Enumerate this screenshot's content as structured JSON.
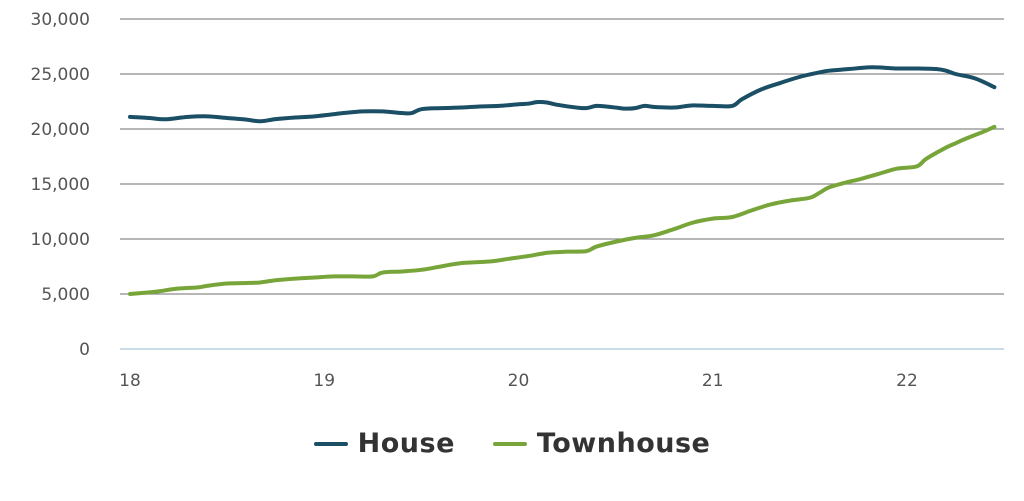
{
  "chart_data": {
    "type": "line",
    "title": "",
    "xlabel": "",
    "ylabel": "",
    "xlim": [
      18,
      22.5
    ],
    "ylim": [
      0,
      30000
    ],
    "x_ticks": [
      "18",
      "19",
      "20",
      "21",
      "22"
    ],
    "y_ticks": [
      "0",
      "5,000",
      "10,000",
      "15,000",
      "20,000",
      "25,000",
      "30,000"
    ],
    "grid": "horizontal",
    "legend_position": "bottom-center",
    "series": [
      {
        "name": "House",
        "color": "#1a4f66",
        "points": [
          [
            18.0,
            21100
          ],
          [
            18.1,
            21000
          ],
          [
            18.15,
            20900
          ],
          [
            18.2,
            20900
          ],
          [
            18.3,
            21100
          ],
          [
            18.4,
            21150
          ],
          [
            18.5,
            21000
          ],
          [
            18.6,
            20850
          ],
          [
            18.67,
            20700
          ],
          [
            18.75,
            20900
          ],
          [
            18.85,
            21050
          ],
          [
            18.95,
            21150
          ],
          [
            19.1,
            21450
          ],
          [
            19.2,
            21600
          ],
          [
            19.3,
            21600
          ],
          [
            19.4,
            21450
          ],
          [
            19.45,
            21450
          ],
          [
            19.5,
            21800
          ],
          [
            19.6,
            21900
          ],
          [
            19.7,
            21950
          ],
          [
            19.8,
            22050
          ],
          [
            19.9,
            22100
          ],
          [
            20.0,
            22250
          ],
          [
            20.05,
            22300
          ],
          [
            20.1,
            22450
          ],
          [
            20.15,
            22400
          ],
          [
            20.2,
            22200
          ],
          [
            20.3,
            21950
          ],
          [
            20.35,
            21900
          ],
          [
            20.4,
            22100
          ],
          [
            20.45,
            22050
          ],
          [
            20.5,
            21950
          ],
          [
            20.55,
            21850
          ],
          [
            20.6,
            21900
          ],
          [
            20.65,
            22100
          ],
          [
            20.7,
            22000
          ],
          [
            20.8,
            21950
          ],
          [
            20.85,
            22050
          ],
          [
            20.9,
            22150
          ],
          [
            21.0,
            22100
          ],
          [
            21.1,
            22100
          ],
          [
            21.15,
            22700
          ],
          [
            21.25,
            23600
          ],
          [
            21.35,
            24200
          ],
          [
            21.45,
            24750
          ],
          [
            21.55,
            25150
          ],
          [
            21.6,
            25300
          ],
          [
            21.7,
            25450
          ],
          [
            21.8,
            25600
          ],
          [
            21.85,
            25600
          ],
          [
            21.95,
            25500
          ],
          [
            22.05,
            25500
          ],
          [
            22.15,
            25450
          ],
          [
            22.2,
            25300
          ],
          [
            22.25,
            25000
          ],
          [
            22.35,
            24600
          ],
          [
            22.45,
            23800
          ]
        ]
      },
      {
        "name": "Townhouse",
        "color": "#78a53a",
        "points": [
          [
            18.0,
            5000
          ],
          [
            18.1,
            5150
          ],
          [
            18.15,
            5250
          ],
          [
            18.25,
            5500
          ],
          [
            18.35,
            5600
          ],
          [
            18.4,
            5750
          ],
          [
            18.5,
            5950
          ],
          [
            18.6,
            6000
          ],
          [
            18.67,
            6050
          ],
          [
            18.75,
            6250
          ],
          [
            18.85,
            6400
          ],
          [
            18.95,
            6500
          ],
          [
            19.05,
            6600
          ],
          [
            19.15,
            6600
          ],
          [
            19.25,
            6600
          ],
          [
            19.3,
            6950
          ],
          [
            19.4,
            7050
          ],
          [
            19.5,
            7200
          ],
          [
            19.6,
            7500
          ],
          [
            19.7,
            7800
          ],
          [
            19.85,
            7950
          ],
          [
            19.95,
            8200
          ],
          [
            20.05,
            8450
          ],
          [
            20.15,
            8750
          ],
          [
            20.25,
            8850
          ],
          [
            20.35,
            8900
          ],
          [
            20.4,
            9300
          ],
          [
            20.5,
            9750
          ],
          [
            20.6,
            10100
          ],
          [
            20.7,
            10350
          ],
          [
            20.8,
            10900
          ],
          [
            20.9,
            11500
          ],
          [
            21.0,
            11850
          ],
          [
            21.1,
            12000
          ],
          [
            21.2,
            12600
          ],
          [
            21.3,
            13150
          ],
          [
            21.4,
            13500
          ],
          [
            21.5,
            13750
          ],
          [
            21.55,
            14200
          ],
          [
            21.6,
            14700
          ],
          [
            21.7,
            15200
          ],
          [
            21.75,
            15400
          ],
          [
            21.85,
            15900
          ],
          [
            21.95,
            16400
          ],
          [
            22.05,
            16600
          ],
          [
            22.1,
            17300
          ],
          [
            22.2,
            18300
          ],
          [
            22.25,
            18700
          ],
          [
            22.3,
            19100
          ],
          [
            22.4,
            19800
          ],
          [
            22.45,
            20200
          ]
        ]
      }
    ]
  },
  "legend": {
    "items": [
      {
        "label": "House",
        "color": "#1a4f66"
      },
      {
        "label": "Townhouse",
        "color": "#78a53a"
      }
    ]
  }
}
